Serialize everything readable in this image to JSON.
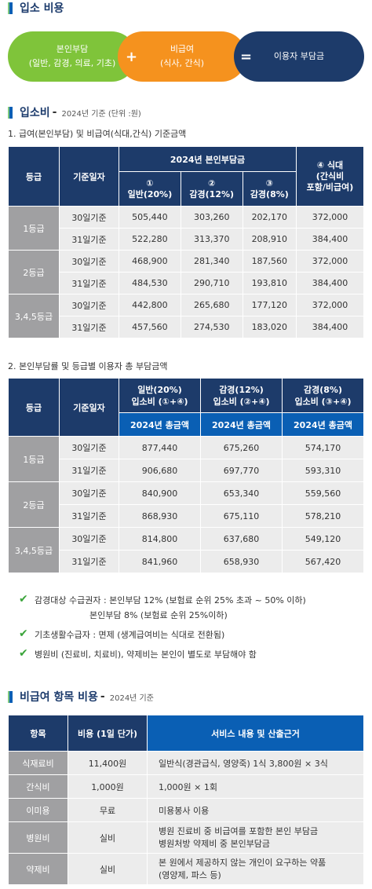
{
  "section1": {
    "title": "입소 비용"
  },
  "formula": {
    "pill1": {
      "title": "본인부담",
      "sub": "(일반, 감경, 의료, 기초)"
    },
    "plus": "+",
    "pill2": {
      "title": "비급여",
      "sub": "(식사, 간식)"
    },
    "equals": "=",
    "pill3": {
      "title": "이용자 부담금"
    }
  },
  "section2": {
    "title": "입소비",
    "dash": "-",
    "sub": "2024년 기준 (단위 :원)"
  },
  "table1": {
    "caption": "1. 급여(본인부담) 및 비급여(식대,간식) 기준금액",
    "h_grade": "등급",
    "h_days": "기준일자",
    "h_group": "2024년 본인부담금",
    "h_c1": "①\n일반(20%)",
    "h_c2": "②\n감경(12%)",
    "h_c3": "③\n감경(8%)",
    "h_c4": "④ 식대\n(간식비\n포함/비급여)",
    "rows": [
      {
        "grade": "1등급",
        "d30": "30일기준",
        "d31": "31일기준",
        "r30": [
          "505,440",
          "303,260",
          "202,170",
          "372,000"
        ],
        "r31": [
          "522,280",
          "313,370",
          "208,910",
          "384,400"
        ]
      },
      {
        "grade": "2등급",
        "d30": "30일기준",
        "d31": "31일기준",
        "r30": [
          "468,900",
          "281,340",
          "187,560",
          "372,000"
        ],
        "r31": [
          "484,530",
          "290,710",
          "193,810",
          "384,400"
        ]
      },
      {
        "grade": "3,4,5등급",
        "d30": "30일기준",
        "d31": "31일기준",
        "r30": [
          "442,800",
          "265,680",
          "177,120",
          "372,000"
        ],
        "r31": [
          "457,560",
          "274,530",
          "183,020",
          "384,400"
        ]
      }
    ]
  },
  "table2": {
    "caption": "2. 본인부담률 및 등급별 이용자 총 부담금액",
    "h_grade": "등급",
    "h_days": "기준일자",
    "h_c1": "일반(20%)\n입소비 (①+④)",
    "h_c2": "감경(12%)\n입소비 (②+④)",
    "h_c3": "감경(8%)\n입소비 (③+④)",
    "h_sub": "2024년 총금액",
    "rows": [
      {
        "grade": "1등급",
        "d30": "30일기준",
        "d31": "31일기준",
        "r30": [
          "877,440",
          "675,260",
          "574,170"
        ],
        "r31": [
          "906,680",
          "697,770",
          "593,310"
        ]
      },
      {
        "grade": "2등급",
        "d30": "30일기준",
        "d31": "31일기준",
        "r30": [
          "840,900",
          "653,340",
          "559,560"
        ],
        "r31": [
          "868,930",
          "675,110",
          "578,210"
        ]
      },
      {
        "grade": "3,4,5등급",
        "d30": "30일기준",
        "d31": "31일기준",
        "r30": [
          "814,800",
          "637,680",
          "549,120"
        ],
        "r31": [
          "841,960",
          "658,930",
          "567,420"
        ]
      }
    ]
  },
  "notes": {
    "n1a": "감경대상 수급권자 : 본인부담 12% (보험료 순위 25% 초과 ~ 50% 이하)",
    "n1b": "본인부담 8% (보험료 순위 25%이하)",
    "n2": "기초생활수급자 : 면제 (생계급여비는 식대로 전환됨)",
    "n3": "병원비 (진료비, 치료비), 약제비는 본인이 별도로 부담해야 함"
  },
  "section3": {
    "title": "비급여 항목 비용",
    "dash": "-",
    "sub": "2024년 기준"
  },
  "table3": {
    "h_item": "항목",
    "h_cost": "비용 (1일 단가)",
    "h_desc": "서비스 내용 및 산출근거",
    "rows": [
      {
        "item": "식재료비",
        "cost": "11,400원",
        "desc": "일반식(경관급식, 영양죽) 1식 3,800원 × 3식"
      },
      {
        "item": "간식비",
        "cost": "1,000원",
        "desc": "1,000원 × 1회"
      },
      {
        "item": "이미용",
        "cost": "무료",
        "desc": "미용봉사 이용"
      },
      {
        "item": "병원비",
        "cost": "실비",
        "desc": "병원 진료비 중 비급여를 포함한 본인 부담금\n병원처방 약제비 중 본인부담금"
      },
      {
        "item": "약제비",
        "cost": "실비",
        "desc": "본 원에서 제공하지 않는 개인이 요구하는 약품\n(영양제, 파스 등)"
      }
    ]
  }
}
